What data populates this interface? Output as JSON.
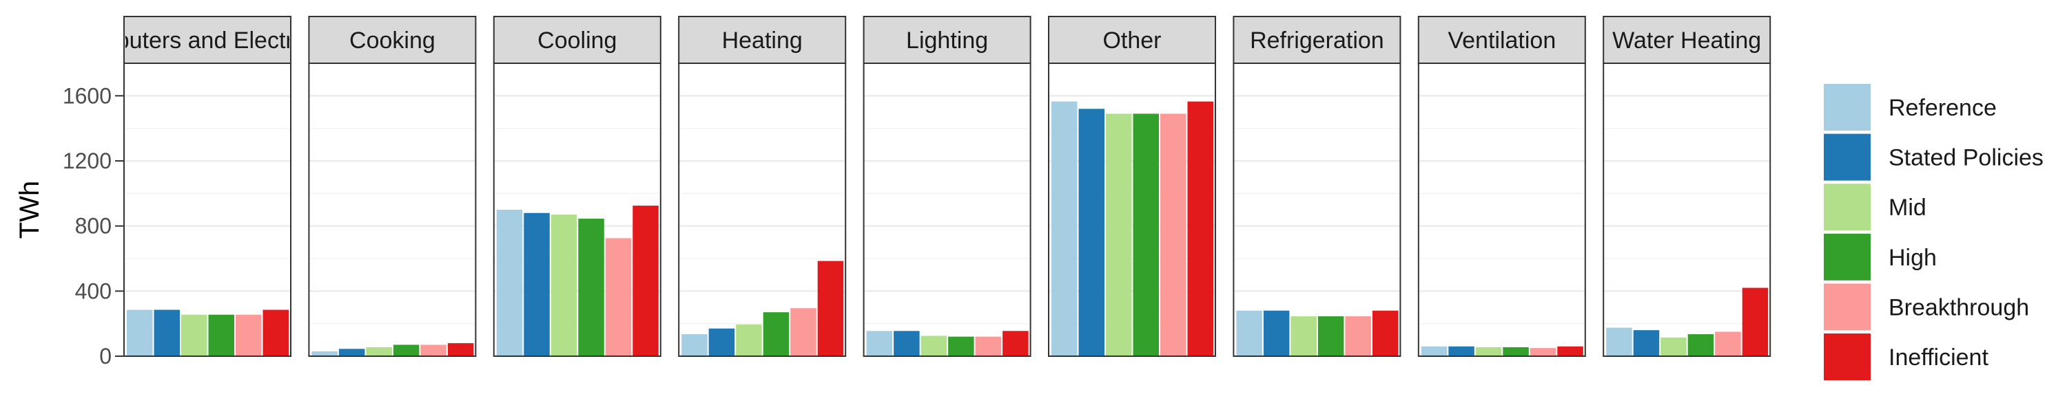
{
  "chart_data": {
    "type": "bar",
    "facet_type": "faceted-bar",
    "ylabel": "TWh",
    "xlabel": "",
    "ylim": [
      0,
      1800
    ],
    "yticks": [
      0,
      400,
      800,
      1200,
      1600
    ],
    "grid": true,
    "legend_position": "right",
    "facets": [
      "Computers and Electronics",
      "Cooking",
      "Cooling",
      "Heating",
      "Lighting",
      "Other",
      "Refrigeration",
      "Ventilation",
      "Water Heating"
    ],
    "series": [
      {
        "name": "Reference",
        "color": "#a6cee3",
        "values": [
          285,
          30,
          900,
          135,
          155,
          1565,
          280,
          60,
          175
        ]
      },
      {
        "name": "Stated Policies",
        "color": "#1f78b4",
        "values": [
          285,
          45,
          880,
          170,
          155,
          1520,
          280,
          60,
          160
        ]
      },
      {
        "name": "Mid",
        "color": "#b2df8a",
        "values": [
          255,
          55,
          870,
          195,
          125,
          1490,
          245,
          55,
          115
        ]
      },
      {
        "name": "High",
        "color": "#33a02c",
        "values": [
          255,
          70,
          845,
          270,
          120,
          1490,
          245,
          55,
          135
        ]
      },
      {
        "name": "Breakthrough",
        "color": "#fb9a99",
        "values": [
          255,
          70,
          725,
          295,
          120,
          1490,
          245,
          50,
          150
        ]
      },
      {
        "name": "Inefficient",
        "color": "#e31a1c",
        "values": [
          285,
          80,
          925,
          585,
          155,
          1565,
          280,
          60,
          420
        ]
      }
    ]
  }
}
